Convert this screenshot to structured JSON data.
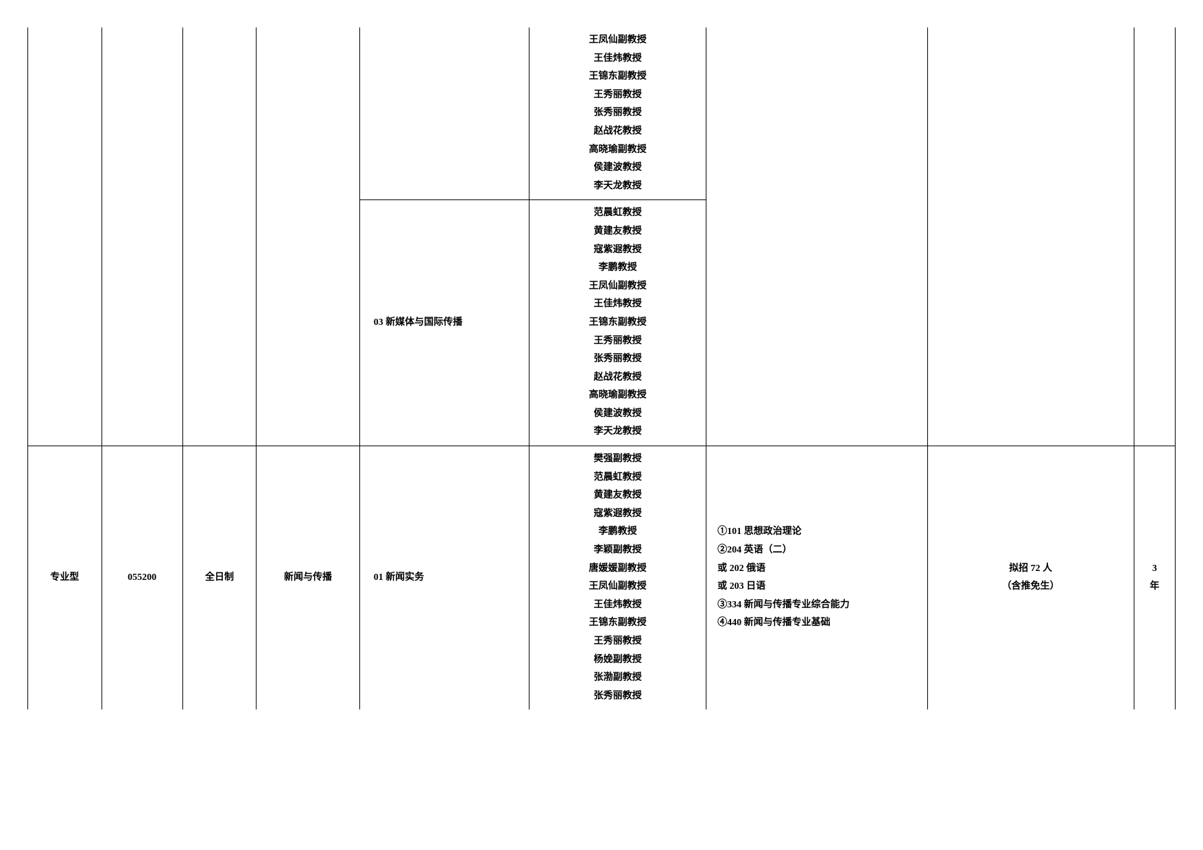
{
  "row_top": {
    "faculty": [
      "王凤仙副教授",
      "王佳炜教授",
      "王锦东副教授",
      "王秀丽教授",
      "张秀丽教授",
      "赵战花教授",
      "高晓瑜副教授",
      "侯建波教授",
      "李天龙教授"
    ]
  },
  "row_03": {
    "direction": "03 新媒体与国际传播",
    "faculty": [
      "范晨虹教授",
      "黄建友教授",
      "寇紫遐教授",
      "李鹏教授",
      "王凤仙副教授",
      "王佳炜教授",
      "王锦东副教授",
      "王秀丽教授",
      "张秀丽教授",
      "赵战花教授",
      "高晓瑜副教授",
      "侯建波教授",
      "李天龙教授"
    ]
  },
  "row_bottom": {
    "type": "专业型",
    "code": "055200",
    "mode": "全日制",
    "major": "新闻与传播",
    "direction": "01 新闻实务",
    "faculty": [
      "樊强副教授",
      "范晨虹教授",
      "黄建友教授",
      "寇紫遐教授",
      "李鹏教授",
      "李颖副教授",
      "唐媛媛副教授",
      "王凤仙副教授",
      "王佳炜教授",
      "王锦东副教授",
      "王秀丽教授",
      "杨娩副教授",
      "张渤副教授",
      "张秀丽教授"
    ],
    "exams": [
      "①101 思想政治理论",
      "②204 英语（二）",
      "或 202 俄语",
      "或 203 日语",
      "③334 新闻与传播专业综合能力",
      "④440 新闻与传播专业基础"
    ],
    "quota_line1": "拟招 72 人",
    "quota_line2": "（含推免生）",
    "years_line1": "3",
    "years_line2": "年"
  }
}
